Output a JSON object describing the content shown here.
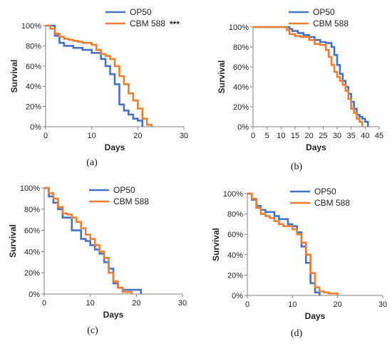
{
  "colors": {
    "series_a": "#4472C4",
    "series_b": "#ED7D31",
    "axis": "#7f7f7f"
  },
  "chart_data": [
    {
      "type": "line",
      "panel_label": "(a)",
      "xlabel": "Days",
      "ylabel": "Survival",
      "xlim": [
        0,
        30
      ],
      "ylim": [
        0,
        100
      ],
      "xticks": [
        0,
        10,
        20,
        30
      ],
      "yticks": [
        0,
        20,
        40,
        60,
        80,
        100
      ],
      "ytick_labels": [
        "0%",
        "20%",
        "40%",
        "60%",
        "80%",
        "100%"
      ],
      "grid": false,
      "legend_position": "top-center",
      "annotation": "***",
      "series": [
        {
          "name": "OP50",
          "color": "#4472C4",
          "steps": [
            [
              0,
              100
            ],
            [
              2,
              90
            ],
            [
              3,
              83
            ],
            [
              4,
              80
            ],
            [
              6,
              78
            ],
            [
              8,
              76
            ],
            [
              10,
              73
            ],
            [
              12,
              67
            ],
            [
              13,
              60
            ],
            [
              14,
              52
            ],
            [
              15,
              42
            ],
            [
              16,
              22
            ],
            [
              17,
              16
            ],
            [
              18,
              12
            ],
            [
              19,
              8
            ],
            [
              20,
              6
            ],
            [
              21,
              0
            ]
          ]
        },
        {
          "name": "CBM 588",
          "color": "#ED7D31",
          "steps": [
            [
              0,
              100
            ],
            [
              1,
              97
            ],
            [
              2,
              92
            ],
            [
              3,
              89
            ],
            [
              4,
              87
            ],
            [
              5,
              86
            ],
            [
              6,
              85
            ],
            [
              7,
              84
            ],
            [
              8,
              83
            ],
            [
              10,
              81
            ],
            [
              11,
              76
            ],
            [
              12,
              72
            ],
            [
              13,
              70
            ],
            [
              14,
              67
            ],
            [
              15,
              60
            ],
            [
              16,
              50
            ],
            [
              17,
              42
            ],
            [
              18,
              33
            ],
            [
              19,
              26
            ],
            [
              20,
              18
            ],
            [
              21,
              8
            ],
            [
              22,
              2
            ],
            [
              23,
              0
            ]
          ]
        }
      ]
    },
    {
      "type": "line",
      "panel_label": "(b)",
      "xlabel": "Days",
      "ylabel": "Survival",
      "xlim": [
        0,
        45
      ],
      "ylim": [
        0,
        100
      ],
      "xticks": [
        0,
        5,
        10,
        15,
        20,
        25,
        30,
        35,
        40,
        45
      ],
      "yticks": [
        0,
        20,
        40,
        60,
        80,
        100
      ],
      "ytick_labels": [
        "0%",
        "20%",
        "40%",
        "60%",
        "80%",
        "100%"
      ],
      "grid": false,
      "legend_position": "top-center",
      "series": [
        {
          "name": "OP50",
          "color": "#4472C4",
          "steps": [
            [
              0,
              100
            ],
            [
              13,
              98
            ],
            [
              14,
              96
            ],
            [
              16,
              94
            ],
            [
              18,
              92
            ],
            [
              20,
              90
            ],
            [
              22,
              87
            ],
            [
              24,
              85
            ],
            [
              26,
              84
            ],
            [
              28,
              80
            ],
            [
              29,
              72
            ],
            [
              30,
              62
            ],
            [
              31,
              53
            ],
            [
              32,
              46
            ],
            [
              33,
              40
            ],
            [
              34,
              33
            ],
            [
              35,
              25
            ],
            [
              36,
              18
            ],
            [
              37,
              12
            ],
            [
              38,
              10
            ],
            [
              39,
              8
            ],
            [
              40,
              5
            ],
            [
              41,
              0
            ]
          ]
        },
        {
          "name": "CBM 588",
          "color": "#ED7D31",
          "steps": [
            [
              0,
              100
            ],
            [
              12,
              97
            ],
            [
              13,
              93
            ],
            [
              15,
              91
            ],
            [
              17,
              90
            ],
            [
              20,
              87
            ],
            [
              22,
              83
            ],
            [
              24,
              82
            ],
            [
              26,
              77
            ],
            [
              27,
              70
            ],
            [
              28,
              62
            ],
            [
              29,
              55
            ],
            [
              30,
              50
            ],
            [
              31,
              46
            ],
            [
              32,
              42
            ],
            [
              33,
              36
            ],
            [
              34,
              28
            ],
            [
              35,
              18
            ],
            [
              36,
              14
            ],
            [
              37,
              8
            ],
            [
              38,
              5
            ],
            [
              39,
              0
            ]
          ]
        }
      ]
    },
    {
      "type": "line",
      "panel_label": "(c)",
      "xlabel": "Days",
      "ylabel": "Survival",
      "xlim": [
        0,
        30
      ],
      "ylim": [
        0,
        100
      ],
      "xticks": [
        0,
        10,
        20,
        30
      ],
      "yticks": [
        0,
        20,
        40,
        60,
        80,
        100
      ],
      "ytick_labels": [
        "0%",
        "20%",
        "40%",
        "60%",
        "80%",
        "100%"
      ],
      "grid": false,
      "legend_position": "top-center",
      "series": [
        {
          "name": "OP50",
          "color": "#4472C4",
          "steps": [
            [
              0,
              100
            ],
            [
              1,
              92
            ],
            [
              2,
              86
            ],
            [
              3,
              80
            ],
            [
              4,
              72
            ],
            [
              6,
              60
            ],
            [
              8,
              52
            ],
            [
              9,
              50
            ],
            [
              10,
              46
            ],
            [
              11,
              42
            ],
            [
              12,
              38
            ],
            [
              13,
              30
            ],
            [
              14,
              24
            ],
            [
              15,
              10
            ],
            [
              16,
              6
            ],
            [
              17,
              4
            ],
            [
              21,
              0
            ]
          ]
        },
        {
          "name": "CBM 588",
          "color": "#ED7D31",
          "steps": [
            [
              0,
              100
            ],
            [
              1,
              95
            ],
            [
              2,
              90
            ],
            [
              3,
              82
            ],
            [
              4,
              76
            ],
            [
              5,
              75
            ],
            [
              6,
              72
            ],
            [
              7,
              68
            ],
            [
              8,
              62
            ],
            [
              9,
              56
            ],
            [
              10,
              52
            ],
            [
              11,
              46
            ],
            [
              12,
              40
            ],
            [
              13,
              34
            ],
            [
              14,
              20
            ],
            [
              15,
              12
            ],
            [
              16,
              6
            ],
            [
              17,
              2
            ],
            [
              19,
              0
            ]
          ]
        }
      ]
    },
    {
      "type": "line",
      "panel_label": "(d)",
      "xlabel": "Days",
      "ylabel": "Survival",
      "xlim": [
        0,
        30
      ],
      "ylim": [
        0,
        100
      ],
      "xticks": [
        0,
        10,
        20,
        30
      ],
      "yticks": [
        0,
        20,
        40,
        60,
        80,
        100
      ],
      "ytick_labels": [
        "0%",
        "20%",
        "40%",
        "60%",
        "80%",
        "100%"
      ],
      "grid": false,
      "legend_position": "top-center",
      "series": [
        {
          "name": "OP50",
          "color": "#4472C4",
          "steps": [
            [
              0,
              100
            ],
            [
              1,
              94
            ],
            [
              2,
              88
            ],
            [
              3,
              84
            ],
            [
              4,
              82
            ],
            [
              6,
              78
            ],
            [
              7,
              75
            ],
            [
              9,
              70
            ],
            [
              10,
              68
            ],
            [
              11,
              62
            ],
            [
              12,
              48
            ],
            [
              13,
              32
            ],
            [
              14,
              12
            ],
            [
              15,
              3
            ],
            [
              16,
              0
            ]
          ]
        },
        {
          "name": "CBM 588",
          "color": "#ED7D31",
          "steps": [
            [
              0,
              100
            ],
            [
              1,
              95
            ],
            [
              2,
              86
            ],
            [
              3,
              80
            ],
            [
              4,
              78
            ],
            [
              5,
              76
            ],
            [
              6,
              73
            ],
            [
              7,
              70
            ],
            [
              8,
              68
            ],
            [
              10,
              65
            ],
            [
              11,
              60
            ],
            [
              12,
              52
            ],
            [
              13,
              40
            ],
            [
              14,
              22
            ],
            [
              15,
              8
            ],
            [
              16,
              4
            ],
            [
              17,
              3
            ],
            [
              18,
              2
            ],
            [
              20,
              0
            ]
          ]
        }
      ]
    }
  ]
}
